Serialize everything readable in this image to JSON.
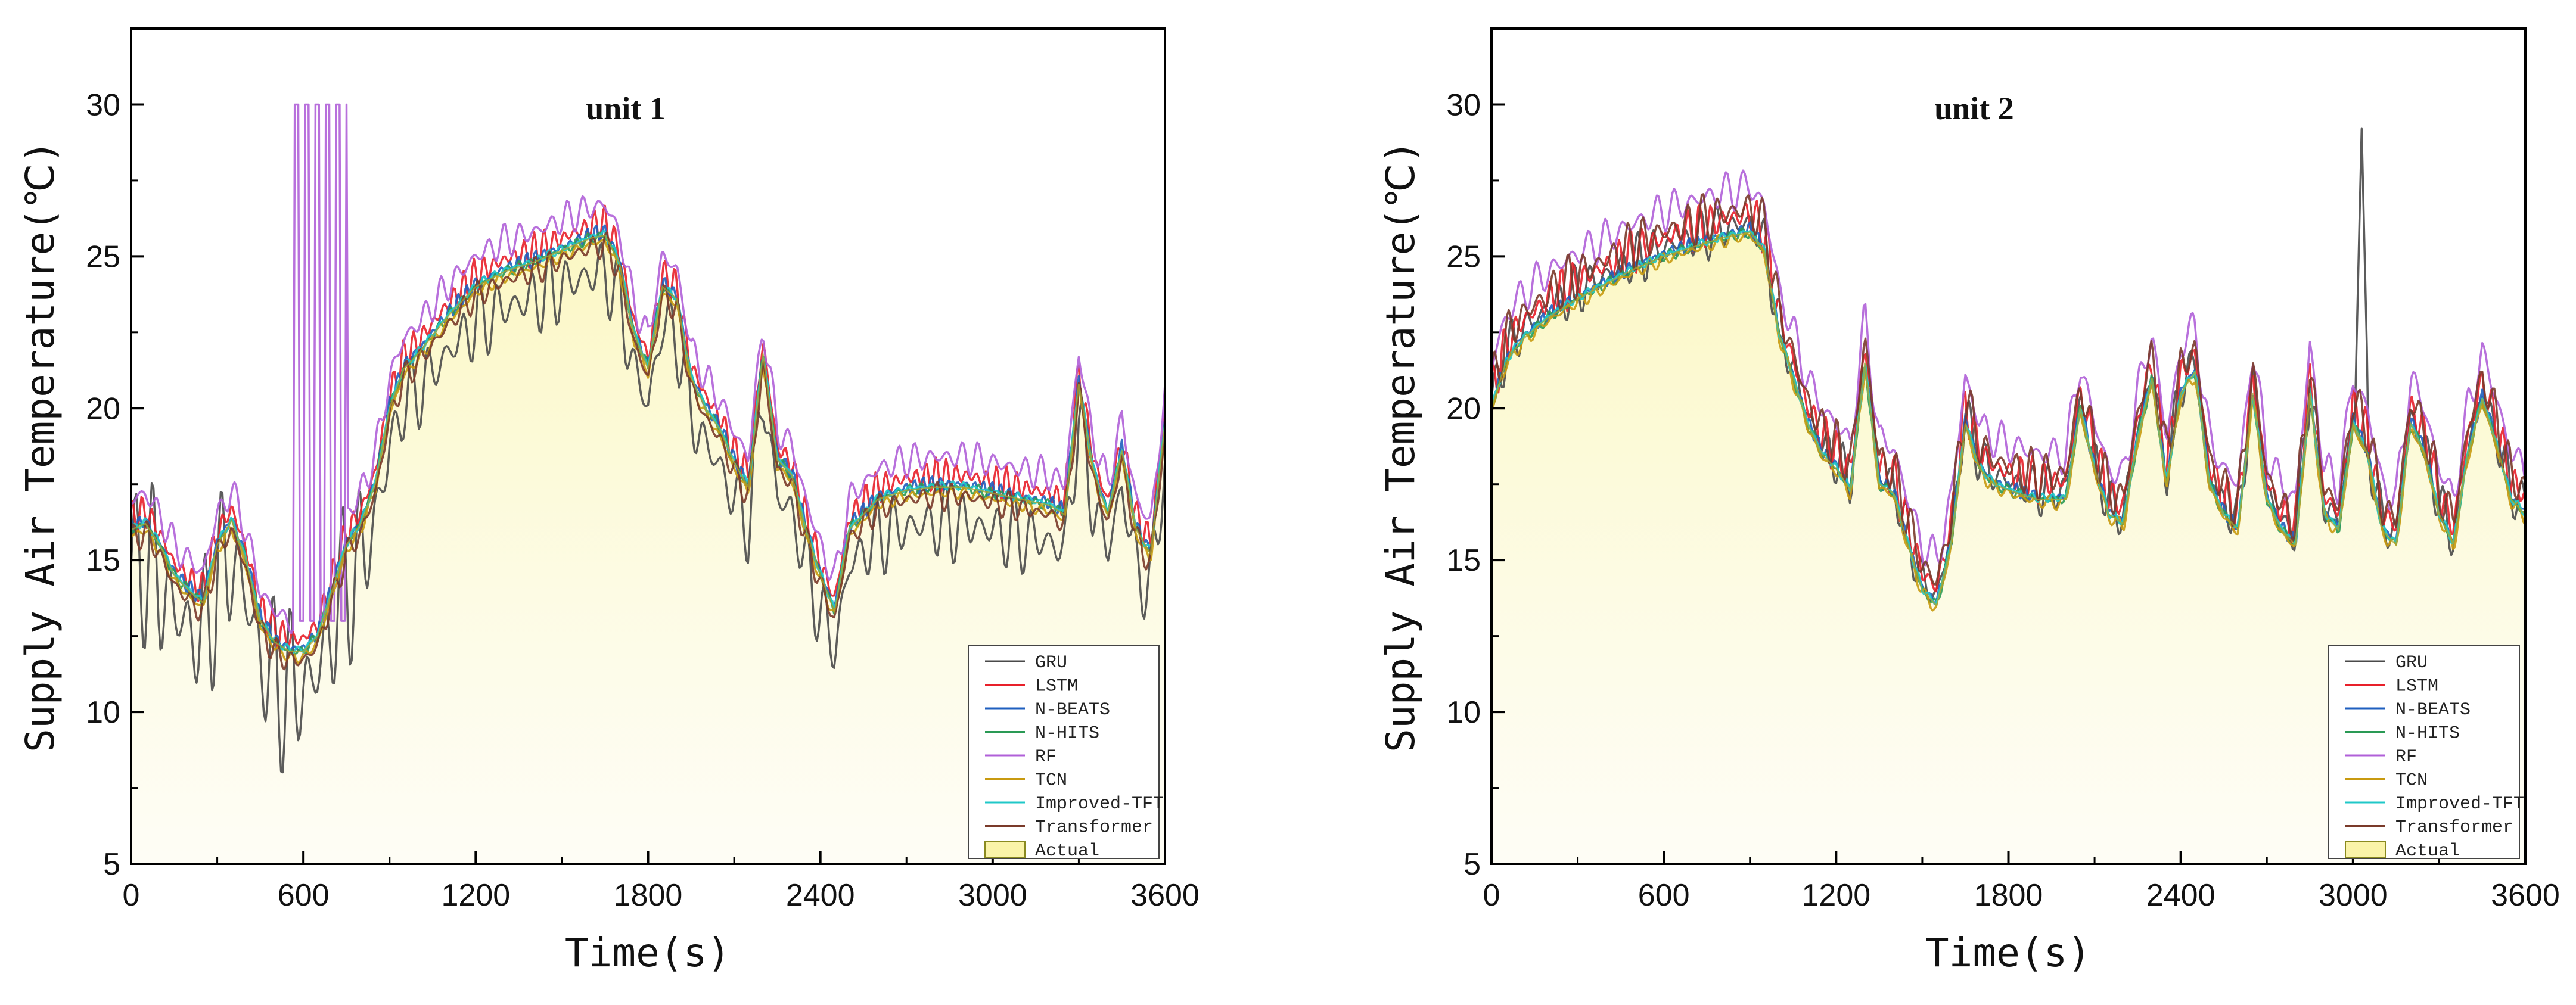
{
  "chart_data": [
    {
      "type": "line",
      "title": "unit 1",
      "xlabel": "Time(s)",
      "ylabel": "Supply Air Temperature(℃)",
      "xlim": [
        0,
        3600
      ],
      "ylim": [
        5,
        32.5
      ],
      "xticks": [
        0,
        600,
        1200,
        1800,
        2400,
        3000,
        3600
      ],
      "yticks": [
        5,
        10,
        15,
        20,
        25,
        30
      ],
      "xtick_labels": [
        "0",
        "600",
        "1200",
        "1800",
        "2400",
        "3000",
        "3600"
      ],
      "ytick_labels": [
        "5",
        "10",
        "15",
        "20",
        "25",
        "30"
      ],
      "legend": [
        "GRU",
        "LSTM",
        "N-BEATS",
        "N-HITS",
        "RF",
        "TCN",
        "Improved-TFT",
        "Transformer",
        "Actual"
      ],
      "legend_position": "bottom-right",
      "actual_x": [
        0,
        50,
        100,
        150,
        200,
        250,
        300,
        350,
        400,
        450,
        500,
        550,
        600,
        650,
        700,
        750,
        800,
        850,
        900,
        950,
        1000,
        1100,
        1200,
        1300,
        1400,
        1500,
        1600,
        1650,
        1700,
        1750,
        1800,
        1850,
        1900,
        1950,
        2000,
        2050,
        2100,
        2150,
        2200,
        2250,
        2300,
        2350,
        2400,
        2450,
        2500,
        2600,
        2700,
        2800,
        2900,
        3000,
        3100,
        3200,
        3250,
        3300,
        3350,
        3400,
        3450,
        3500,
        3550,
        3600
      ],
      "actual_y": [
        16,
        16.2,
        15.5,
        14.5,
        14,
        13.6,
        15.5,
        16.3,
        15,
        13,
        12.3,
        12,
        12,
        12.5,
        14,
        15.5,
        16.2,
        17.5,
        20,
        21.3,
        21.8,
        23,
        24,
        24.5,
        24.8,
        25.2,
        25.6,
        25.7,
        24.8,
        22.5,
        21.3,
        24,
        23.6,
        21,
        20,
        19.3,
        18.2,
        17.4,
        21.8,
        18.3,
        17.8,
        16,
        14.5,
        13.3,
        16,
        17,
        17.3,
        17.4,
        17.4,
        17.2,
        17,
        16.8,
        16.5,
        20.8,
        18,
        16.5,
        18.6,
        16,
        15.2,
        19.5
      ],
      "series": [
        {
          "name": "GRU",
          "color": "#4a4a4a",
          "offset": -1.2,
          "jitter": 1.4,
          "period": 60,
          "jitter_range": [
            0,
            900
          ]
        },
        {
          "name": "LSTM",
          "color": "#e8202a",
          "offset": 0.4,
          "jitter": 0.6,
          "period": 35
        },
        {
          "name": "N-BEATS",
          "color": "#1f5fbf",
          "offset": 0.1,
          "jitter": 0.3,
          "period": 30
        },
        {
          "name": "N-HITS",
          "color": "#2a9a55",
          "offset": 0.0,
          "jitter": 0.2,
          "period": 40
        },
        {
          "name": "RF",
          "color": "#b060d8",
          "offset": 1.0,
          "jitter": 0.6,
          "period": 55,
          "spike_range": [
            570,
            750
          ],
          "spike_high": 30,
          "spike_low": 13
        },
        {
          "name": "TCN",
          "color": "#c89a10",
          "offset": -0.2,
          "jitter": 0.2,
          "period": 45
        },
        {
          "name": "Improved-TFT",
          "color": "#20c8c8",
          "offset": 0.05,
          "jitter": 0.15,
          "period": 38
        },
        {
          "name": "Transformer",
          "color": "#7a3a2a",
          "offset": -0.3,
          "jitter": 0.5,
          "period": 50
        }
      ]
    },
    {
      "type": "line",
      "title": "unit 2",
      "xlabel": "Time(s)",
      "ylabel": "Supply Air Temperature(℃)",
      "xlim": [
        0,
        3600
      ],
      "ylim": [
        5,
        32.5
      ],
      "xticks": [
        0,
        600,
        1200,
        1800,
        2400,
        3000,
        3600
      ],
      "yticks": [
        5,
        10,
        15,
        20,
        25,
        30
      ],
      "xtick_labels": [
        "0",
        "600",
        "1200",
        "1800",
        "2400",
        "3000",
        "3600"
      ],
      "ytick_labels": [
        "5",
        "10",
        "15",
        "20",
        "25",
        "30"
      ],
      "legend": [
        "GRU",
        "LSTM",
        "N-BEATS",
        "N-HITS",
        "RF",
        "TCN",
        "Improved-TFT",
        "Transformer",
        "Actual"
      ],
      "legend_position": "bottom-right",
      "actual_x": [
        0,
        50,
        100,
        200,
        300,
        400,
        500,
        600,
        700,
        800,
        900,
        950,
        1000,
        1050,
        1100,
        1150,
        1200,
        1250,
        1300,
        1350,
        1400,
        1450,
        1500,
        1550,
        1600,
        1650,
        1700,
        1750,
        1800,
        1900,
        2000,
        2050,
        2100,
        2150,
        2200,
        2250,
        2300,
        2350,
        2400,
        2450,
        2500,
        2550,
        2600,
        2650,
        2700,
        2750,
        2800,
        2850,
        2900,
        2950,
        3000,
        3050,
        3100,
        3150,
        3200,
        3250,
        3300,
        3350,
        3400,
        3450,
        3500,
        3550,
        3600
      ],
      "actual_y": [
        20,
        21.5,
        22.2,
        23,
        23.6,
        24.1,
        24.6,
        25,
        25.3,
        25.6,
        25.8,
        25.2,
        22.5,
        21,
        19.5,
        18.5,
        18,
        17.3,
        21.5,
        17.5,
        17.2,
        15.5,
        14,
        13.5,
        15.5,
        19.5,
        18,
        17.5,
        17.3,
        17,
        17,
        20,
        18,
        16.5,
        16.2,
        19,
        21,
        17.5,
        20.5,
        21.2,
        17.5,
        16.5,
        16,
        20.5,
        17,
        16,
        15.5,
        20.5,
        16.5,
        16,
        19.5,
        18.5,
        16,
        15.5,
        19.5,
        18.5,
        16.5,
        15.5,
        18.5,
        20.3,
        18.8,
        17,
        16.5
      ],
      "series": [
        {
          "name": "GRU",
          "color": "#4a4a4a",
          "offset": 0.3,
          "jitter": 0.9,
          "period": 55,
          "peak_x": 3030,
          "peak_y": 29.2
        },
        {
          "name": "LSTM",
          "color": "#e8202a",
          "offset": 0.6,
          "jitter": 0.8,
          "period": 40
        },
        {
          "name": "N-BEATS",
          "color": "#1f5fbf",
          "offset": 0.1,
          "jitter": 0.25,
          "period": 30
        },
        {
          "name": "N-HITS",
          "color": "#2a9a55",
          "offset": 0.0,
          "jitter": 0.2,
          "period": 42
        },
        {
          "name": "RF",
          "color": "#b060d8",
          "offset": 1.5,
          "jitter": 0.7,
          "period": 60
        },
        {
          "name": "TCN",
          "color": "#c89a10",
          "offset": -0.1,
          "jitter": 0.25,
          "period": 48
        },
        {
          "name": "Improved-TFT",
          "color": "#20c8c8",
          "offset": 0.05,
          "jitter": 0.15,
          "period": 36
        },
        {
          "name": "Transformer",
          "color": "#7a3a2a",
          "offset": 0.8,
          "jitter": 0.9,
          "period": 52
        }
      ]
    }
  ]
}
